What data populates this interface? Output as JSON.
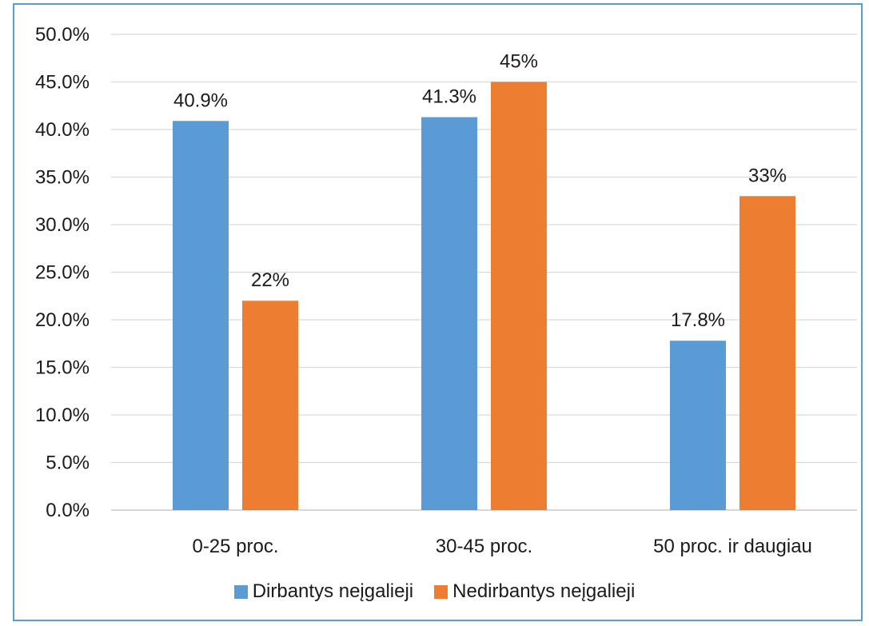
{
  "chart_data": {
    "type": "bar",
    "categories": [
      "0-25 proc.",
      "30-45 proc.",
      "50 proc. ir daugiau"
    ],
    "series": [
      {
        "name": "Dirbantys neįgalieji",
        "values": [
          40.9,
          41.3,
          17.8
        ],
        "labels": [
          "40.9%",
          "41.3%",
          "17.8%"
        ],
        "color": "#5b9bd5"
      },
      {
        "name": "Nedirbantys neįgalieji",
        "values": [
          22,
          45,
          33
        ],
        "labels": [
          "22%",
          "45%",
          "33%"
        ],
        "color": "#ed7d31"
      }
    ],
    "ylim": [
      0,
      50
    ],
    "yticks": [
      "0.0%",
      "5.0%",
      "10.0%",
      "15.0%",
      "20.0%",
      "25.0%",
      "30.0%",
      "35.0%",
      "40.0%",
      "45.0%",
      "50.0%"
    ],
    "grid": true,
    "legend_position": "bottom",
    "title": "",
    "xlabel": "",
    "ylabel": ""
  }
}
